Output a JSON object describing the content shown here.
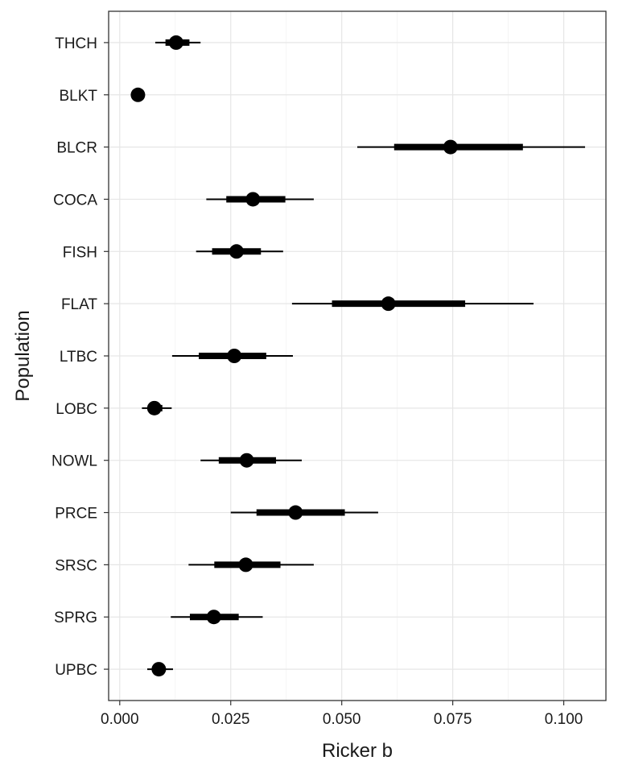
{
  "chart_data": {
    "type": "pointrange",
    "xlabel": "Ricker b",
    "ylabel": "Population",
    "xlim": [
      -0.0025,
      0.1095
    ],
    "x_ticks": [
      0.0,
      0.025,
      0.05,
      0.075,
      0.1
    ],
    "x_tick_labels": [
      "0.000",
      "0.025",
      "0.050",
      "0.075",
      "0.100"
    ],
    "grid": true,
    "colors": {
      "mark": "#000000",
      "grid": "#e6e6e6",
      "border": "#333333"
    },
    "categories": [
      "THCH",
      "BLKT",
      "BLCR",
      "COCA",
      "FISH",
      "FLAT",
      "LTBC",
      "LOBC",
      "NOWL",
      "PRCE",
      "SRSC",
      "SPRG",
      "UPBC"
    ],
    "series": [
      {
        "median": [
          0.0127,
          0.0041,
          0.0745,
          0.03,
          0.0263,
          0.0605,
          0.0258,
          0.0078,
          0.0286,
          0.0396,
          0.0284,
          0.0212,
          0.0088
        ],
        "inner_low": [
          0.0103,
          0.0037,
          0.0618,
          0.024,
          0.0208,
          0.0478,
          0.0178,
          0.0063,
          0.0223,
          0.0308,
          0.0213,
          0.0158,
          0.0078
        ],
        "inner_high": [
          0.0157,
          0.0046,
          0.0908,
          0.0373,
          0.0318,
          0.0778,
          0.033,
          0.0096,
          0.0352,
          0.0507,
          0.0362,
          0.0268,
          0.01
        ],
        "outer_low": [
          0.008,
          0.0032,
          0.0535,
          0.0195,
          0.0172,
          0.0388,
          0.0118,
          0.005,
          0.0182,
          0.025,
          0.0155,
          0.0115,
          0.0062
        ],
        "outer_high": [
          0.0182,
          0.005,
          0.1048,
          0.0437,
          0.0368,
          0.0932,
          0.039,
          0.0117,
          0.041,
          0.0582,
          0.0437,
          0.0322,
          0.012
        ]
      }
    ]
  }
}
